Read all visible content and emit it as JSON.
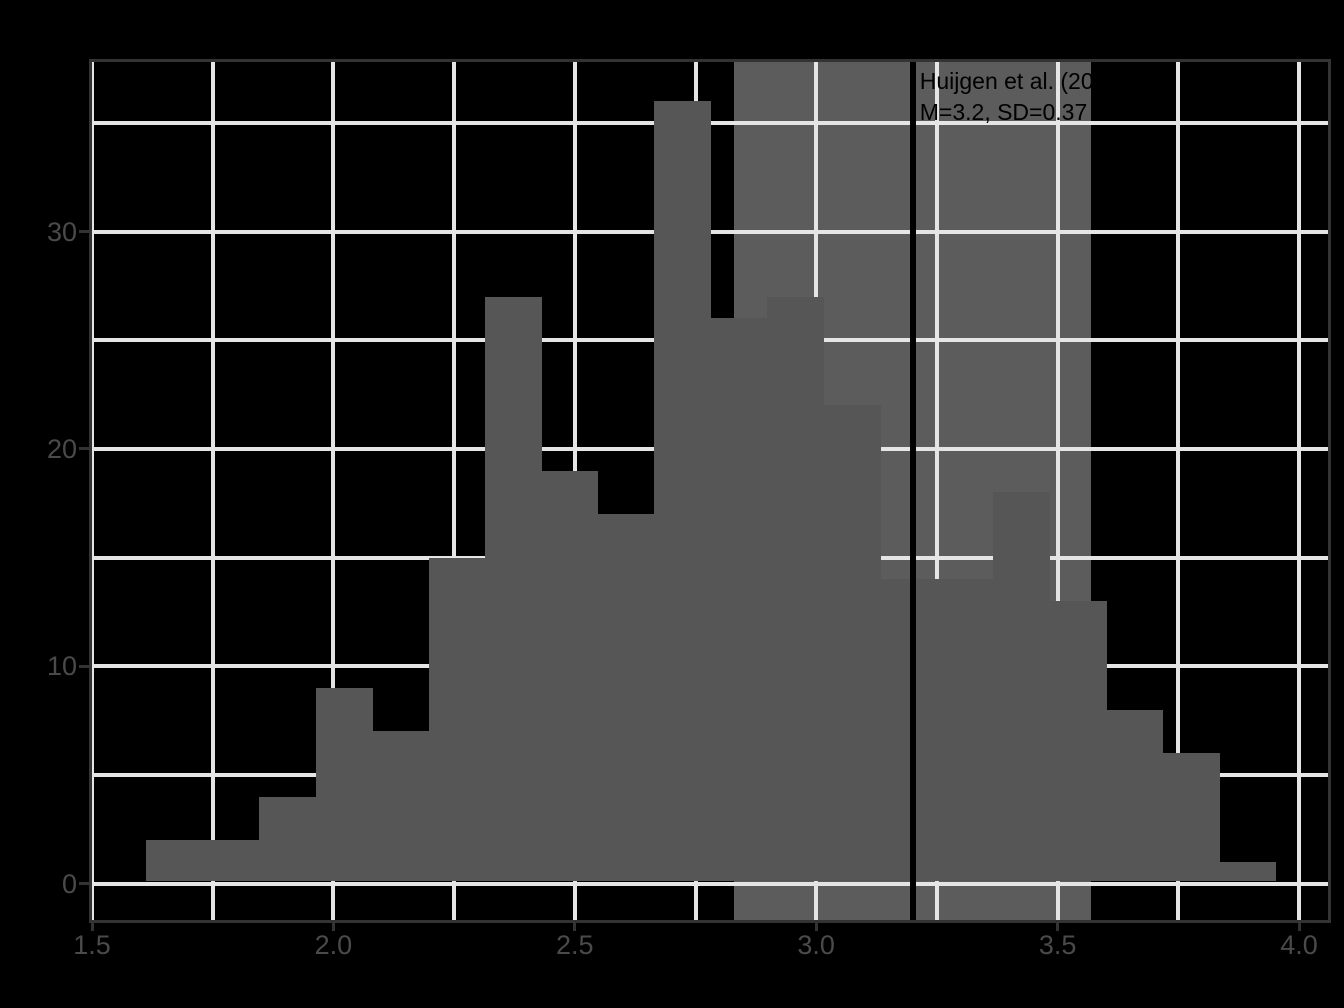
{
  "chart_data": {
    "type": "histogram",
    "title": "",
    "xlabel": "",
    "ylabel": "",
    "x_tick_labels": [
      "1.5",
      "2.0",
      "2.5",
      "3.0",
      "3.5",
      "4.0"
    ],
    "x_tick_values": [
      1.5,
      2.0,
      2.5,
      3.0,
      3.5,
      4.0
    ],
    "y_tick_labels": [
      "0",
      "10",
      "20",
      "30"
    ],
    "y_tick_values": [
      0,
      10,
      20,
      30
    ],
    "x_gridline_values": [
      1.5,
      1.75,
      2.0,
      2.25,
      2.5,
      2.75,
      3.0,
      3.25,
      3.5,
      3.75,
      4.0
    ],
    "y_gridline_values": [
      0,
      5,
      10,
      15,
      20,
      25,
      30,
      35
    ],
    "xlim": [
      1.5,
      4.0
    ],
    "ylim": [
      0,
      35
    ],
    "grid": "on",
    "bin_start": 1.612,
    "bin_width": 0.117,
    "counts": [
      2,
      2,
      4,
      9,
      7,
      15,
      27,
      19,
      17,
      36,
      26,
      27,
      22,
      14,
      14,
      18,
      13,
      8,
      6,
      1
    ],
    "mean_line_x": 3.2,
    "sd_band_x": [
      2.83,
      3.57
    ],
    "annotation": {
      "line1": "Huijgen et al. (20",
      "line2": "M=3.2, SD=0.37"
    },
    "colors": {
      "background": "#000000",
      "panel_border": "#333333",
      "gridline": "#e5e5e5",
      "bar_fill": "#565656",
      "band_fill": "#5c5c5c",
      "mean_line": "#000000",
      "annotation_text": "#000000",
      "axis_text": "#4a4a4a",
      "axis_tick": "#333333"
    }
  }
}
